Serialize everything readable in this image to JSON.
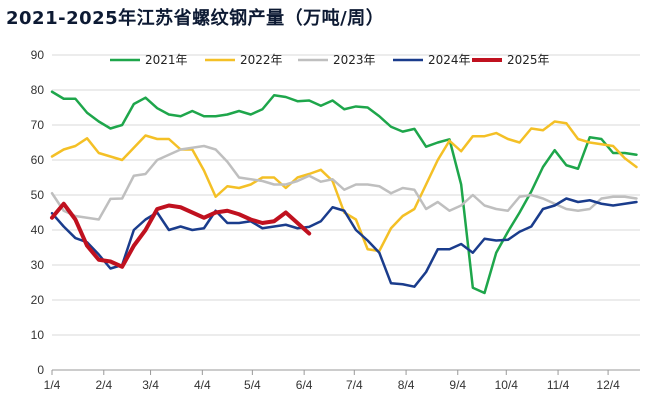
{
  "chart_data": {
    "type": "line",
    "title": "2021-2025年江苏省螺纹钢产量（万吨/周）",
    "xlabel": "",
    "ylabel": "",
    "ylim": [
      0,
      90
    ],
    "yticks": [
      0,
      10,
      20,
      30,
      40,
      50,
      60,
      70,
      80,
      90
    ],
    "x_tick_labels": [
      "1/4",
      "2/4",
      "3/4",
      "4/4",
      "5/4",
      "6/4",
      "7/4",
      "8/4",
      "9/4",
      "10/4",
      "11/4",
      "12/4"
    ],
    "x_tick_weeks": [
      0,
      4.43,
      8.43,
      12.86,
      17.14,
      21.57,
      25.86,
      30.29,
      34.71,
      38.86,
      43.29,
      47.57
    ],
    "x_range_weeks": [
      0,
      50.3
    ],
    "grid": "horizontal",
    "legend_position": "top",
    "series": [
      {
        "name": "2021年",
        "color": "#1ea64b",
        "values": [
          79.5,
          77.5,
          77.5,
          73.5,
          71,
          69,
          70,
          76,
          77.8,
          74.8,
          73,
          72.5,
          74,
          72.5,
          72.5,
          73,
          74,
          73,
          74.5,
          78.5,
          78,
          76.8,
          77,
          75.5,
          77,
          74.5,
          75.3,
          75,
          72.5,
          69.5,
          68.1,
          68.9,
          63.8,
          65,
          65.9,
          53,
          23.5,
          22,
          33.5,
          39.5,
          45,
          51,
          58,
          62.8,
          58.5,
          57.5,
          66.5,
          66,
          62,
          62,
          61.5
        ]
      },
      {
        "name": "2022年",
        "color": "#f4c026",
        "values": [
          61,
          63,
          64,
          66.2,
          62,
          61,
          60,
          63.5,
          67,
          66,
          66,
          63,
          63,
          57,
          49.5,
          52.5,
          52,
          53,
          55,
          55,
          52,
          55,
          56,
          57.2,
          54,
          45,
          43,
          34.5,
          34,
          40.5,
          44,
          46,
          53,
          60,
          65.5,
          62.5,
          66.8,
          66.8,
          67.7,
          66,
          65,
          69,
          68.5,
          71,
          70.5,
          66,
          65,
          64.5,
          64,
          60.5,
          58
        ]
      },
      {
        "name": "2023年",
        "color": "#bfbfbf",
        "values": [
          50.5,
          45.5,
          44,
          43.5,
          43,
          48.9,
          49,
          55.5,
          56,
          60,
          61.5,
          63,
          63.5,
          64,
          63,
          59.5,
          55,
          54.5,
          54,
          53,
          53,
          54,
          55.5,
          53.8,
          54.5,
          51.5,
          53,
          53,
          52.5,
          50.5,
          52,
          51.5,
          46,
          48,
          45.5,
          47,
          50,
          47,
          46,
          45.5,
          49.5,
          50,
          49,
          47.5,
          46,
          45.5,
          46,
          49,
          49.5,
          49.5,
          49
        ]
      },
      {
        "name": "2024年",
        "color": "#1a3c8c",
        "values": [
          44.8,
          41,
          37.7,
          36.5,
          33,
          29,
          30,
          40,
          43,
          45,
          40,
          41,
          40,
          40.5,
          45.5,
          42,
          42,
          42.5,
          40.5,
          41,
          41.5,
          40.5,
          40.9,
          42.5,
          46.5,
          45.5,
          40,
          37,
          33.5,
          24.8,
          24.5,
          23.8,
          28,
          34.5,
          34.5,
          36,
          33.5,
          37.5,
          37,
          37.2,
          39.5,
          41,
          46,
          47,
          49,
          48,
          48.5,
          47.5,
          47,
          47.5,
          48
        ]
      },
      {
        "name": "2025年",
        "color": "#c0111f",
        "values": [
          43.5,
          47.5,
          43,
          35.5,
          31.5,
          31,
          29.5,
          35.5,
          40,
          46,
          47,
          46.5,
          45,
          43.5,
          45,
          45.5,
          44.5,
          43,
          42,
          42.5,
          45,
          42,
          39
        ]
      }
    ]
  }
}
